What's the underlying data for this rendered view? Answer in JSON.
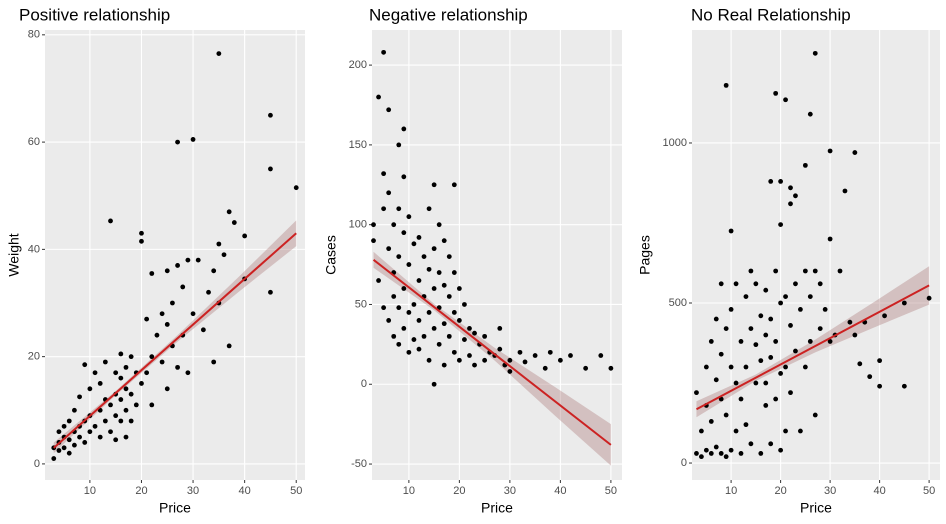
{
  "chart_data": [
    {
      "type": "scatter",
      "title": "Positive relationship",
      "x_label": "Price",
      "y_label": "Weight",
      "xlim": [
        1.3,
        51.7
      ],
      "ylim": [
        -3,
        80.9
      ],
      "xticks": [
        10,
        20,
        30,
        40,
        50
      ],
      "yticks": [
        0,
        20,
        40,
        60,
        80
      ],
      "grid": true,
      "point_color": "#000000",
      "line_color": "#cc2222",
      "band_color": "#b08080",
      "x": [
        3,
        3,
        4,
        4,
        4,
        5,
        5,
        5,
        6,
        6,
        6,
        7,
        7,
        7,
        8,
        8,
        8,
        9,
        9,
        9,
        10,
        10,
        10,
        11,
        11,
        12,
        12,
        12,
        13,
        13,
        13,
        14,
        14,
        14,
        15,
        15,
        15,
        15,
        16,
        16,
        16,
        16,
        17,
        17,
        17,
        17,
        18,
        18,
        18,
        19,
        19,
        20,
        20,
        20,
        21,
        21,
        22,
        22,
        23,
        24,
        24,
        25,
        25,
        26,
        26,
        27,
        27,
        28,
        28,
        29,
        30,
        30,
        31,
        32,
        33,
        34,
        35,
        35,
        35,
        36,
        37,
        37,
        38,
        40,
        40,
        45,
        45,
        45,
        50,
        25,
        27,
        22,
        29,
        34
      ],
      "y": [
        1,
        3,
        2.5,
        4,
        6,
        3,
        5,
        7,
        2,
        4.5,
        8,
        3.5,
        6,
        10,
        5,
        7,
        12.5,
        4,
        8,
        18.5,
        6,
        9,
        14,
        7,
        17,
        5,
        10,
        15,
        8,
        12,
        19,
        6,
        11,
        45.3,
        9,
        13,
        17,
        4.5,
        8,
        12,
        16,
        20.5,
        10,
        14,
        18,
        5,
        13,
        20,
        8,
        11,
        17,
        15,
        43,
        41.5,
        17,
        27,
        20,
        11,
        24,
        19,
        28,
        14,
        26,
        22,
        30,
        60,
        18,
        24,
        33,
        17,
        60.5,
        28,
        38,
        25,
        32,
        36,
        76.5,
        41,
        30,
        39,
        47,
        22,
        45,
        42.5,
        34.5,
        65,
        55,
        32,
        51.5,
        36,
        37,
        35.5,
        38,
        19
      ],
      "fit": {
        "x": [
          3,
          50
        ],
        "y": [
          3,
          43
        ]
      },
      "band": {
        "x": [
          3,
          15,
          27,
          39,
          50
        ],
        "lower": [
          2,
          12.8,
          22.8,
          32.2,
          40.6
        ],
        "upper": [
          4,
          13.6,
          24,
          35,
          45.4
        ]
      }
    },
    {
      "type": "scatter",
      "title": "Negative relationship",
      "x_label": "Price",
      "y_label": "Cases",
      "xlim": [
        2.7,
        52.2
      ],
      "ylim": [
        -60,
        222
      ],
      "xticks": [
        10,
        20,
        30,
        40,
        50
      ],
      "yticks": [
        -50,
        0,
        50,
        100,
        150,
        200
      ],
      "grid": true,
      "point_color": "#000000",
      "line_color": "#cc2222",
      "band_color": "#b08080",
      "x": [
        3,
        3,
        4,
        4,
        5,
        5,
        5,
        5,
        6,
        6,
        6,
        6,
        7,
        7,
        7,
        7,
        8,
        8,
        8,
        8,
        8,
        9,
        9,
        9,
        9,
        9,
        10,
        10,
        10,
        10,
        11,
        11,
        11,
        12,
        12,
        12,
        12,
        13,
        13,
        13,
        14,
        14,
        14,
        14,
        15,
        15,
        15,
        15,
        15,
        16,
        16,
        16,
        16,
        17,
        17,
        17,
        17,
        18,
        18,
        18,
        19,
        19,
        19,
        20,
        20,
        20,
        21,
        21,
        22,
        22,
        23,
        23,
        24,
        25,
        25,
        26,
        27,
        28,
        29,
        30,
        30,
        32,
        33,
        35,
        37,
        38,
        40,
        42,
        45,
        48,
        50,
        28,
        19
      ],
      "y": [
        100,
        90,
        180,
        65,
        208,
        132,
        110,
        48,
        172,
        120,
        85,
        40,
        100,
        70,
        55,
        30,
        150,
        110,
        80,
        48,
        25,
        160,
        130,
        95,
        60,
        35,
        105,
        75,
        45,
        20,
        88,
        50,
        28,
        92,
        65,
        40,
        22,
        80,
        55,
        30,
        110,
        72,
        45,
        15,
        125,
        85,
        60,
        35,
        0,
        100,
        70,
        48,
        25,
        90,
        62,
        38,
        12,
        80,
        55,
        30,
        70,
        45,
        20,
        60,
        40,
        15,
        50,
        28,
        35,
        18,
        32,
        12,
        25,
        30,
        15,
        20,
        18,
        22,
        12,
        15,
        8,
        20,
        14,
        18,
        10,
        20,
        15,
        18,
        10,
        18,
        10,
        35,
        125
      ],
      "fit": {
        "x": [
          3,
          50
        ],
        "y": [
          78,
          -38
        ]
      },
      "band": {
        "x": [
          3,
          15,
          27,
          39,
          50
        ],
        "lower": [
          73,
          46.4,
          14.8,
          -19.9,
          -51
        ],
        "upper": [
          83,
          50.4,
          22.8,
          -1.9,
          -25
        ]
      }
    },
    {
      "type": "scatter",
      "title": "No Real Relationship",
      "x_label": "Price",
      "y_label": "Pages",
      "xlim": [
        2.1,
        52.2
      ],
      "ylim": [
        -53,
        1353
      ],
      "xticks": [
        10,
        20,
        30,
        40,
        50
      ],
      "yticks": [
        0,
        500,
        1000
      ],
      "grid": true,
      "point_color": "#000000",
      "line_color": "#cc2222",
      "band_color": "#b08080",
      "x": [
        3,
        3,
        4,
        4,
        5,
        5,
        5,
        6,
        6,
        6,
        7,
        7,
        7,
        8,
        8,
        8,
        8,
        9,
        9,
        9,
        9,
        10,
        10,
        10,
        10,
        11,
        11,
        11,
        12,
        12,
        12,
        13,
        13,
        13,
        14,
        14,
        14,
        15,
        15,
        15,
        16,
        16,
        16,
        17,
        17,
        17,
        17,
        18,
        18,
        18,
        18,
        19,
        19,
        19,
        19,
        20,
        20,
        20,
        20,
        20,
        21,
        21,
        21,
        21,
        22,
        22,
        22,
        22,
        23,
        23,
        23,
        24,
        24,
        25,
        25,
        25,
        26,
        26,
        26,
        27,
        27,
        27,
        28,
        28,
        29,
        30,
        30,
        30,
        31,
        32,
        33,
        34,
        35,
        35,
        36,
        37,
        38,
        40,
        40,
        41,
        45,
        45,
        50
      ],
      "y": [
        30,
        220,
        20,
        100,
        40,
        300,
        180,
        30,
        380,
        130,
        50,
        450,
        260,
        30,
        560,
        200,
        340,
        1180,
        20,
        420,
        150,
        725,
        40,
        300,
        480,
        560,
        100,
        250,
        380,
        200,
        30,
        520,
        300,
        120,
        600,
        420,
        60,
        560,
        250,
        370,
        460,
        320,
        30,
        540,
        400,
        180,
        250,
        880,
        450,
        60,
        330,
        1155,
        600,
        380,
        200,
        880,
        745,
        500,
        40,
        280,
        1135,
        520,
        300,
        100,
        860,
        810,
        430,
        220,
        835,
        560,
        350,
        480,
        100,
        930,
        600,
        300,
        1090,
        520,
        380,
        1280,
        600,
        150,
        560,
        420,
        480,
        975,
        700,
        380,
        400,
        600,
        850,
        440,
        970,
        400,
        310,
        440,
        270,
        320,
        240,
        460,
        500,
        240,
        515
      ],
      "fit": {
        "x": [
          3,
          50
        ],
        "y": [
          168,
          555
        ]
      },
      "band": {
        "x": [
          3,
          15,
          27,
          39,
          50
        ],
        "lower": [
          143,
          256.8,
          345.6,
          424.4,
          495
        ],
        "upper": [
          193,
          276.8,
          385.6,
          504.4,
          615
        ]
      }
    }
  ]
}
